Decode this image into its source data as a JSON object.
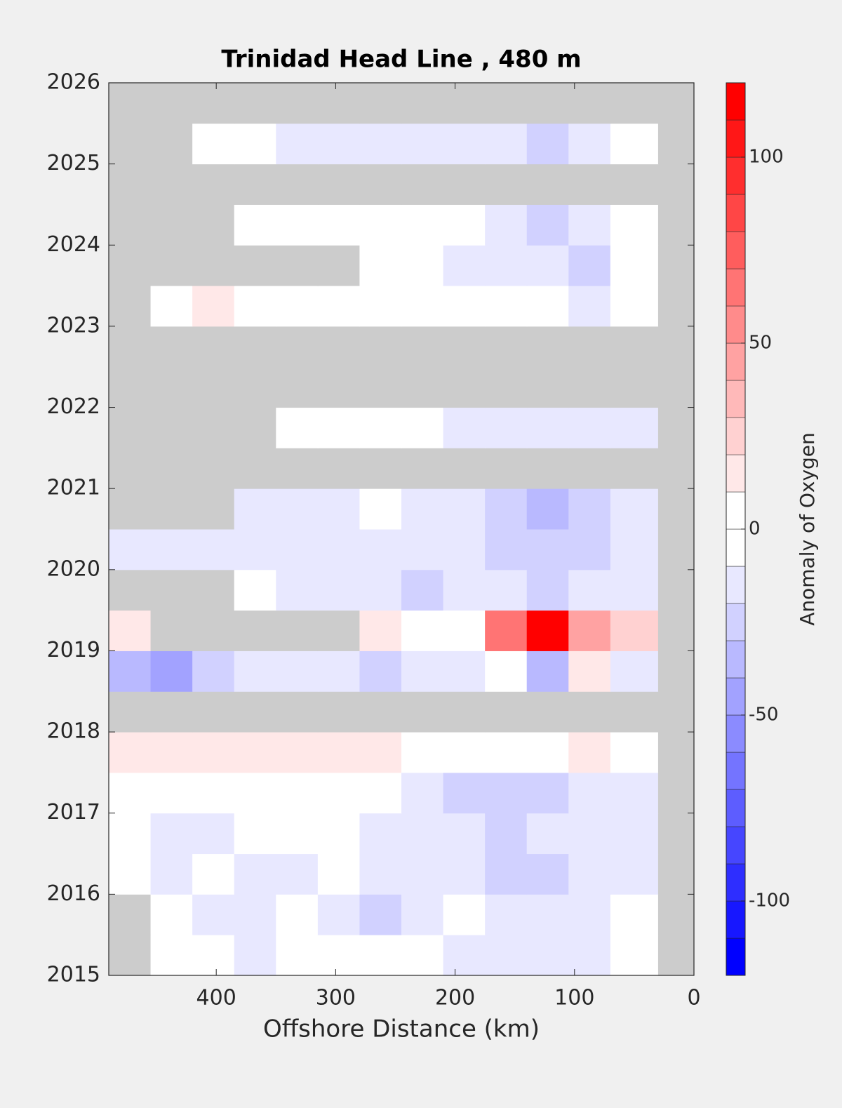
{
  "chart_data": {
    "type": "contour",
    "title": "Trinidad Head Line , 480 m",
    "xlabel": "Offshore Distance (km)",
    "colorbar_label": "Anomaly of Oxygen",
    "xlim": [
      490,
      0
    ],
    "ylim": [
      2015,
      2026
    ],
    "xticks": [
      400,
      300,
      200,
      100,
      0
    ],
    "yticks": [
      2015,
      2016,
      2017,
      2018,
      2019,
      2020,
      2021,
      2022,
      2023,
      2024,
      2025,
      2026
    ],
    "clim": [
      -120,
      120
    ],
    "cticks": [
      -100,
      -50,
      0,
      50,
      100
    ],
    "contour_interval": 10,
    "colormap": {
      "low": "#0000ff",
      "mid": "#ffffff",
      "high": "#ff0000"
    },
    "nan_color": "#cccccc",
    "x_edges": [
      490,
      455,
      420,
      385,
      350,
      315,
      280,
      245,
      210,
      175,
      140,
      105,
      70,
      30,
      0
    ],
    "y_edges": [
      2015,
      2015.5,
      2016,
      2016.5,
      2017,
      2017.5,
      2018,
      2018.5,
      2019,
      2019.5,
      2020,
      2020.5,
      2021,
      2021.5,
      2022,
      2022.5,
      2023,
      2023.5,
      2024,
      2024.5,
      2025,
      2025.5,
      2026
    ],
    "values": [
      [
        null,
        0,
        0,
        -10,
        0,
        0,
        -5,
        0,
        -10,
        -15,
        -15,
        -10,
        0,
        null
      ],
      [
        null,
        0,
        -10,
        -10,
        -5,
        -15,
        -20,
        -10,
        -5,
        -10,
        -15,
        -10,
        -5,
        null
      ],
      [
        0,
        -10,
        -5,
        -15,
        -10,
        -5,
        -15,
        -10,
        -15,
        -20,
        -25,
        -15,
        -10,
        null
      ],
      [
        0,
        -10,
        -10,
        0,
        0,
        0,
        -10,
        -10,
        -15,
        -20,
        -15,
        -10,
        -10,
        null
      ],
      [
        0,
        0,
        0,
        0,
        0,
        0,
        -5,
        -15,
        -20,
        -20,
        -25,
        -15,
        -10,
        null
      ],
      [
        15,
        15,
        15,
        10,
        10,
        15,
        10,
        5,
        0,
        0,
        5,
        10,
        0,
        null
      ],
      [
        null,
        null,
        null,
        null,
        null,
        null,
        null,
        null,
        null,
        null,
        null,
        null,
        null,
        null
      ],
      [
        -35,
        -40,
        -20,
        -10,
        -15,
        -15,
        -20,
        -15,
        -10,
        5,
        -30,
        10,
        -10,
        null
      ],
      [
        10,
        null,
        null,
        null,
        null,
        null,
        10,
        5,
        0,
        60,
        110,
        40,
        20,
        null
      ],
      [
        null,
        null,
        null,
        0,
        -10,
        -15,
        -10,
        -20,
        -15,
        -15,
        -20,
        -15,
        -10,
        null
      ],
      [
        -10,
        -10,
        -10,
        -15,
        -15,
        -10,
        -15,
        -15,
        -15,
        -20,
        -25,
        -20,
        -10,
        null
      ],
      [
        null,
        null,
        null,
        -10,
        -10,
        -10,
        -5,
        -15,
        -15,
        -20,
        -30,
        -25,
        -10,
        null
      ],
      [
        null,
        null,
        null,
        null,
        null,
        null,
        null,
        null,
        null,
        null,
        null,
        null,
        null,
        null
      ],
      [
        null,
        null,
        null,
        null,
        0,
        0,
        0,
        0,
        -10,
        -10,
        -10,
        -15,
        -10,
        null
      ],
      [
        null,
        null,
        null,
        null,
        null,
        null,
        null,
        null,
        null,
        null,
        null,
        null,
        null,
        null
      ],
      [
        null,
        null,
        null,
        null,
        null,
        null,
        null,
        null,
        null,
        null,
        null,
        null,
        null,
        null
      ],
      [
        null,
        5,
        10,
        0,
        0,
        0,
        0,
        -5,
        0,
        0,
        0,
        -10,
        0,
        null
      ],
      [
        null,
        null,
        null,
        null,
        null,
        null,
        0,
        0,
        -10,
        -15,
        -15,
        -20,
        0,
        null
      ],
      [
        null,
        null,
        null,
        0,
        0,
        0,
        0,
        0,
        0,
        -10,
        -25,
        -15,
        0,
        null
      ],
      [
        null,
        null,
        null,
        null,
        null,
        null,
        null,
        null,
        null,
        null,
        null,
        null,
        null,
        null
      ],
      [
        null,
        null,
        0,
        0,
        -10,
        -10,
        -15,
        -15,
        -10,
        -15,
        -20,
        -15,
        -5,
        null
      ],
      [
        null,
        null,
        null,
        null,
        null,
        null,
        null,
        null,
        null,
        null,
        null,
        null,
        null,
        null
      ]
    ]
  }
}
